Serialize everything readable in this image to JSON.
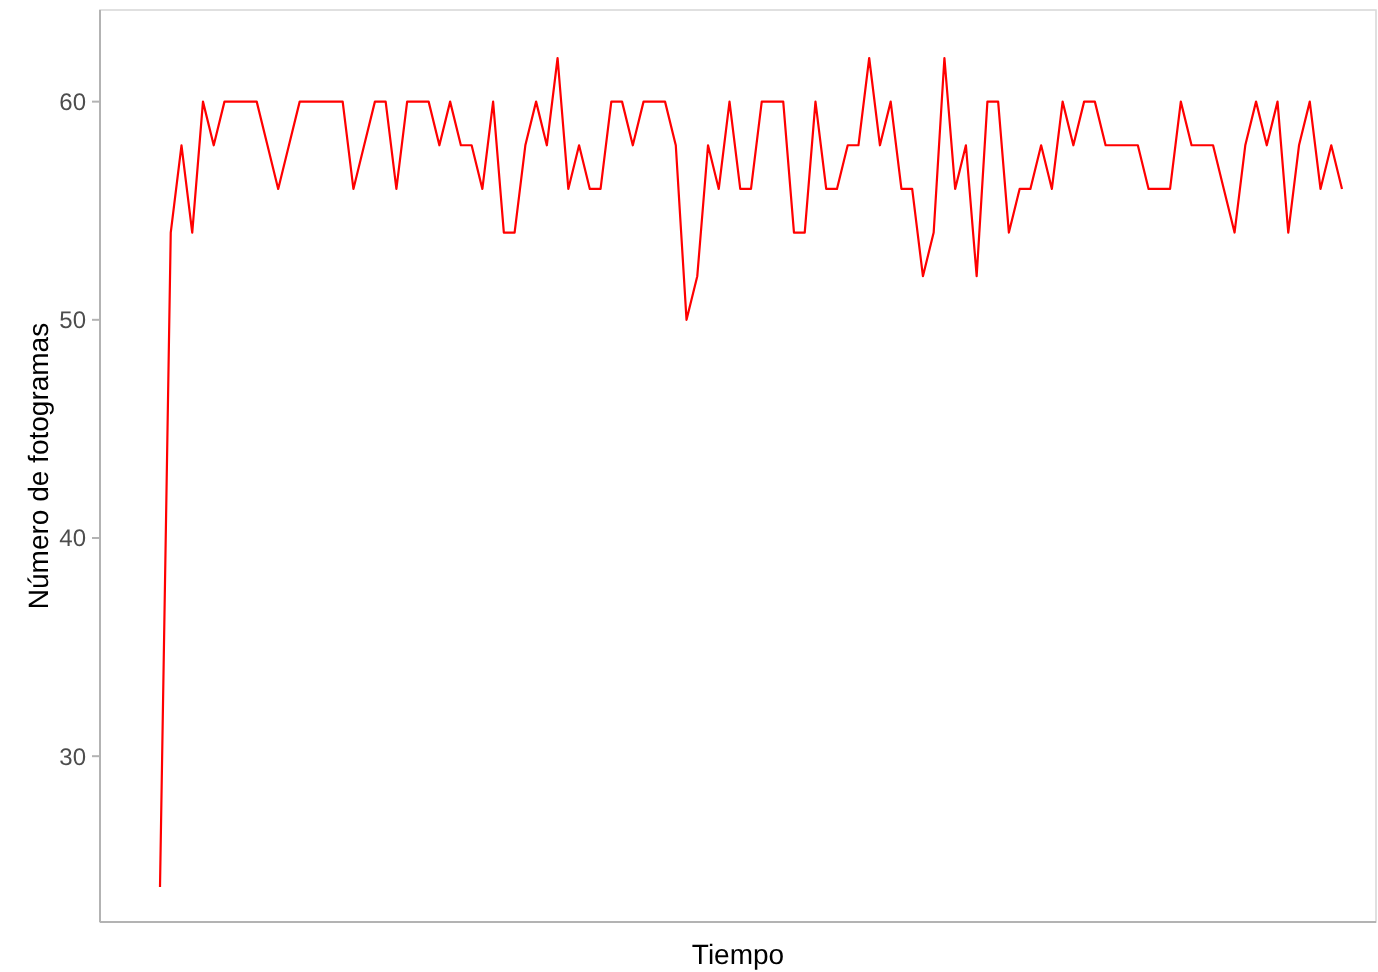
{
  "chart_data": {
    "type": "line",
    "xlabel": "Tiempo",
    "ylabel": "Número de fotogramas",
    "categories": [
      null,
      null,
      null,
      null,
      null,
      null,
      null,
      null,
      null,
      null,
      null,
      null,
      null,
      null,
      null,
      null,
      null,
      null,
      null,
      null,
      null,
      null,
      null,
      null,
      null,
      null,
      null,
      null,
      null,
      null,
      null,
      null,
      null,
      null,
      null,
      null,
      null,
      null,
      null,
      null,
      null,
      null,
      null,
      null,
      null,
      null,
      null,
      null,
      null,
      null,
      null,
      null,
      null,
      null,
      null,
      null,
      null,
      null,
      null,
      null,
      null,
      null,
      null,
      null,
      null,
      null,
      null,
      null,
      null,
      null,
      null,
      null,
      null,
      null,
      null,
      null,
      null,
      null,
      null,
      null,
      null,
      null,
      null,
      null,
      null,
      null,
      null,
      null,
      null,
      null,
      null,
      null,
      null,
      null,
      null,
      null,
      null,
      null,
      null,
      null,
      null,
      null,
      null,
      null,
      null,
      null,
      null,
      null,
      null,
      null,
      null
    ],
    "series": [
      {
        "color": "#ff0000",
        "values": [
          24,
          54,
          58,
          54,
          60,
          58,
          60,
          60,
          60,
          60,
          58,
          56,
          58,
          60,
          60,
          60,
          60,
          60,
          56,
          58,
          60,
          60,
          56,
          60,
          60,
          60,
          58,
          60,
          58,
          58,
          56,
          60,
          54,
          54,
          58,
          60,
          58,
          62,
          56,
          58,
          56,
          56,
          60,
          60,
          58,
          60,
          60,
          60,
          58,
          50,
          52,
          58,
          56,
          60,
          56,
          56,
          60,
          60,
          60,
          54,
          54,
          60,
          56,
          56,
          58,
          58,
          62,
          58,
          60,
          56,
          56,
          52,
          54,
          62,
          56,
          58,
          52,
          60,
          60,
          54,
          56,
          56,
          58,
          56,
          60,
          58,
          60,
          60,
          58,
          58,
          58,
          58,
          56,
          56,
          56,
          60,
          58,
          58,
          58,
          56,
          54,
          58,
          60,
          58,
          60,
          54,
          58,
          60,
          56,
          58,
          56
        ]
      }
    ],
    "ylim": [
      22.4,
      64.2
    ],
    "yticks": [
      30,
      40,
      50,
      60
    ],
    "tick_labels": "y",
    "line_style": "solid"
  }
}
